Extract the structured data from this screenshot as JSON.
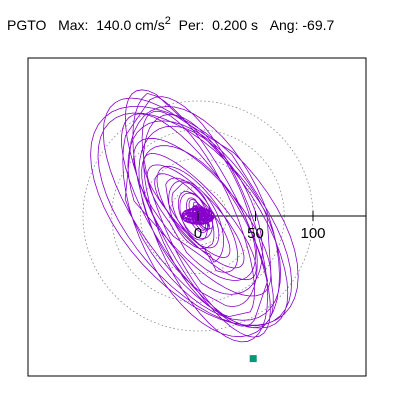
{
  "title": {
    "station": "PGTO",
    "max_label": "Max:",
    "max_value": "140.0 cm/s",
    "max_exponent": "2",
    "per_label": "Per:",
    "per_value": "0.200 s",
    "ang_label": "Ang:",
    "ang_value": "-69.7"
  },
  "chart_data": {
    "type": "scatter",
    "title": "PGTO  Max: 140.0 cm/s2  Per: 0.200 s  Ang: -69.7",
    "xlabel": "",
    "ylabel": "",
    "x_ticks": [
      0,
      50,
      100
    ],
    "x_tick_labels": [
      "0",
      "50",
      "100"
    ],
    "units": "cm/s2",
    "xlim": [
      -150,
      145
    ],
    "ylim": [
      -125,
      135
    ],
    "reference_circles_radius": [
      25,
      50,
      75,
      100
    ],
    "grid": false,
    "polarization_angle_deg": -69.7,
    "max_amplitude": 140.0,
    "orbit_color": "#8800cc",
    "end_marker": {
      "x": 48,
      "y": -124,
      "color": "#009977"
    }
  }
}
